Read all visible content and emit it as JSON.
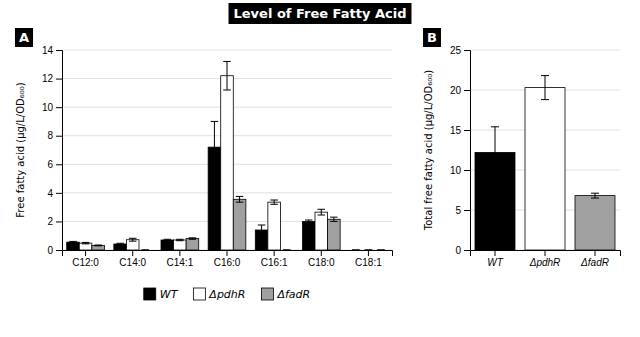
{
  "chart_data": [
    {
      "type": "bar",
      "title": "Level of Free Fatty Acid",
      "annotations": [
        "A"
      ],
      "categories": [
        "C12:0",
        "C14:0",
        "C14:1",
        "C16:0",
        "C16:1",
        "C18:0",
        "C18:1"
      ],
      "series": [
        {
          "name": "WT",
          "color": "#000000",
          "values": [
            0.55,
            0.42,
            0.7,
            7.2,
            1.4,
            2.0,
            0.0
          ],
          "errors": [
            0.05,
            0.05,
            0.05,
            1.8,
            0.35,
            0.1,
            0.0
          ]
        },
        {
          "name": "ΔpdhR",
          "color": "#ffffff",
          "values": [
            0.48,
            0.72,
            0.7,
            12.2,
            3.35,
            2.65,
            0.0
          ],
          "errors": [
            0.05,
            0.1,
            0.05,
            1.0,
            0.15,
            0.2,
            0.0
          ]
        },
        {
          "name": "ΔfadR",
          "color": "#a0a0a0",
          "values": [
            0.32,
            0.0,
            0.8,
            3.55,
            0.0,
            2.15,
            0.0
          ],
          "errors": [
            0.03,
            0.0,
            0.05,
            0.2,
            0.0,
            0.15,
            0.0
          ]
        }
      ],
      "ylabel": "Free fatty acid (μg/L/OD₆₀₀)",
      "ylim": [
        0,
        14
      ],
      "yticks": [
        0,
        2,
        4,
        6,
        8,
        10,
        12,
        14
      ],
      "grid": true,
      "legend": "bottom"
    },
    {
      "type": "bar",
      "annotations": [
        "B"
      ],
      "categories": [
        "WT",
        "ΔpdhR",
        "ΔfadR"
      ],
      "values": [
        12.2,
        20.3,
        6.8
      ],
      "errors": [
        3.2,
        1.5,
        0.3
      ],
      "colors": [
        "#000000",
        "#ffffff",
        "#a0a0a0"
      ],
      "ylabel": "Total free fatty acid (μg/L/OD₆₀₀)",
      "ylim": [
        0,
        25
      ],
      "yticks": [
        0,
        5,
        10,
        15,
        20,
        25
      ],
      "grid": true
    }
  ]
}
